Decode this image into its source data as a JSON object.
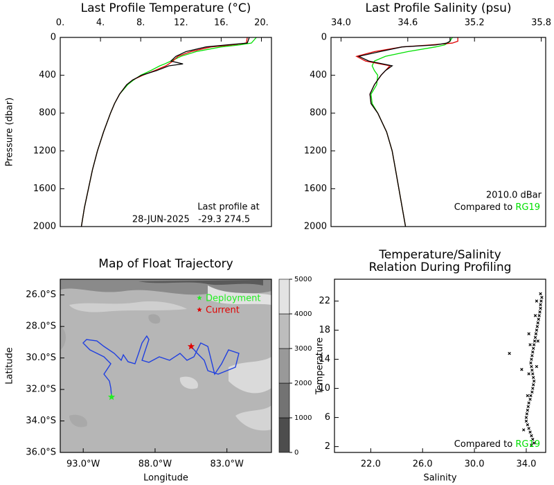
{
  "chart_data": [
    {
      "type": "line",
      "title": "Last Profile Temperature (°C)",
      "y_label": "Pressure (dbar)",
      "x_axis": "top",
      "xlim": [
        0,
        21
      ],
      "xticks": [
        {
          "value": 0,
          "label": "0."
        },
        {
          "value": 4,
          "label": "4."
        },
        {
          "value": 8,
          "label": "8."
        },
        {
          "value": 12,
          "label": "12."
        },
        {
          "value": 16,
          "label": "16."
        },
        {
          "value": 20,
          "label": "20."
        }
      ],
      "ylim": [
        2000,
        0
      ],
      "yticks": [
        0,
        400,
        800,
        1200,
        1600,
        2000
      ],
      "pressure": [
        0,
        60,
        80,
        100,
        150,
        200,
        250,
        280,
        300,
        350,
        400,
        450,
        500,
        600,
        700,
        800,
        1000,
        1200,
        1400,
        1600,
        1800,
        2000
      ],
      "series": [
        {
          "color": "#00e000",
          "values": [
            19.5,
            19.0,
            17.8,
            16.0,
            13.5,
            12.0,
            11.0,
            10.4,
            9.9,
            9.0,
            8.0,
            7.3,
            6.7,
            5.9,
            5.4,
            5.0,
            4.3,
            3.7,
            3.2,
            2.8,
            2.4,
            2.1
          ]
        },
        {
          "color": "#e00000",
          "values": [
            18.6,
            18.5,
            17.0,
            15.0,
            13.0,
            11.7,
            11.2,
            10.8,
            10.5,
            9.4,
            8.2,
            7.2,
            6.6,
            5.9,
            5.4,
            5.0,
            4.3,
            3.7,
            3.2,
            2.8,
            2.4,
            2.1
          ]
        },
        {
          "color": "#000000",
          "values": [
            18.8,
            18.6,
            16.5,
            14.5,
            12.5,
            11.5,
            11.0,
            12.2,
            10.8,
            9.6,
            8.1,
            7.2,
            6.6,
            5.9,
            5.4,
            5.0,
            4.3,
            3.7,
            3.2,
            2.8,
            2.4,
            2.1
          ]
        }
      ],
      "annotations": [
        "Last profile at",
        "28-JUN-2025   -29.3 274.5"
      ]
    },
    {
      "type": "line",
      "title": "Last Profile Salinity (psu)",
      "x_axis": "top",
      "xlim": [
        33.91,
        35.84
      ],
      "xticks": [
        {
          "value": 34,
          "label": "34.0"
        },
        34.6,
        35.2,
        35.8
      ],
      "ylim": [
        2000,
        0
      ],
      "yticks": [
        0,
        400,
        800,
        1200,
        1600,
        2000
      ],
      "pressure": [
        0,
        40,
        60,
        80,
        100,
        150,
        200,
        250,
        300,
        350,
        400,
        500,
        600,
        700,
        800,
        1000,
        1200,
        1400,
        1600,
        1800,
        2000
      ],
      "series": [
        {
          "color": "#00e000",
          "values": [
            35.0,
            34.98,
            34.96,
            34.93,
            34.85,
            34.6,
            34.4,
            34.3,
            34.28,
            34.3,
            34.33,
            34.32,
            34.27,
            34.28,
            34.33,
            34.41,
            34.46,
            34.49,
            34.52,
            34.55,
            34.58
          ]
        },
        {
          "color": "#e00000",
          "values": [
            35.05,
            35.05,
            35.0,
            34.8,
            34.55,
            34.3,
            34.14,
            34.22,
            34.44,
            34.4,
            34.36,
            34.3,
            34.26,
            34.27,
            34.33,
            34.41,
            34.46,
            34.49,
            34.52,
            34.55,
            34.58
          ]
        },
        {
          "color": "#000000",
          "values": [
            34.98,
            34.98,
            34.95,
            34.85,
            34.55,
            34.35,
            34.16,
            34.25,
            34.46,
            34.4,
            34.36,
            34.3,
            34.26,
            34.27,
            34.33,
            34.41,
            34.46,
            34.49,
            34.52,
            34.55,
            34.58
          ]
        }
      ],
      "annotations": [
        "2010.0 dBar",
        "Compared to ",
        "RG19"
      ],
      "annotation_color": "#00e000"
    },
    {
      "type": "map",
      "title": "Map of Float Trajectory",
      "x_label": "Longitude",
      "y_label": "Latitude",
      "xlim": [
        -94.6,
        -79.9
      ],
      "xticks": [
        {
          "value": -93,
          "label": "93.0°W"
        },
        {
          "value": -88,
          "label": "88.0°W"
        },
        {
          "value": -83,
          "label": "83.0°W"
        }
      ],
      "ylim": [
        -36,
        -25
      ],
      "yticks": [
        {
          "value": -26,
          "label": "26.0°S"
        },
        {
          "value": -28,
          "label": "28.0°S"
        },
        {
          "value": -30,
          "label": "30.0°S"
        },
        {
          "value": -32,
          "label": "32.0°S"
        },
        {
          "value": -34,
          "label": "34.0°S"
        },
        {
          "value": -36,
          "label": "36.0°S"
        }
      ],
      "colorbar": {
        "ticks": [
          0,
          1000,
          2000,
          3000,
          4000,
          5000
        ],
        "colors": [
          "#4d4d4d",
          "#737373",
          "#999999",
          "#bdbdbd",
          "#e3e3e3"
        ]
      },
      "track": {
        "color": "#1f3fe0",
        "lon": [
          -91.03,
          -91.08,
          -91.18,
          -91.56,
          -91.08,
          -91.56,
          -92.53,
          -93.01,
          -92.77,
          -92.05,
          -91.56,
          -90.84,
          -90.36,
          -90.21,
          -89.88,
          -89.4,
          -89.15,
          -88.91,
          -88.58,
          -88.43,
          -88.67,
          -88.91,
          -88.43,
          -87.71,
          -86.99,
          -86.26,
          -85.78,
          -85.3,
          -84.82,
          -84.33,
          -83.85,
          -83.37,
          -82.89,
          -82.17,
          -82.41,
          -83.61,
          -84.33,
          -84.58,
          -85.06,
          -85.49
        ],
        "lat": [
          -32.48,
          -31.91,
          -31.47,
          -31.03,
          -30.37,
          -29.93,
          -29.49,
          -29.05,
          -28.83,
          -28.92,
          -29.27,
          -29.71,
          -30.15,
          -29.8,
          -30.24,
          -30.37,
          -29.71,
          -29.05,
          -28.61,
          -28.83,
          -29.49,
          -30.15,
          -30.28,
          -29.93,
          -30.15,
          -29.71,
          -30.15,
          -29.93,
          -29.05,
          -29.27,
          -31.03,
          -30.37,
          -29.49,
          -29.71,
          -30.59,
          -31.03,
          -30.81,
          -30.15,
          -29.71,
          -29.27
        ]
      },
      "markers": [
        {
          "name": "Deployment",
          "color": "#22ee22",
          "lon": -91.03,
          "lat": -32.48
        },
        {
          "name": "Current",
          "color": "#e00000",
          "lon": -85.49,
          "lat": -29.27
        }
      ]
    },
    {
      "type": "scatter",
      "title": [
        "Temperature/Salinity",
        "Relation During Profiling"
      ],
      "x_label": "Salinity",
      "y_label": "Temperature",
      "xlim": [
        19.2,
        35.5
      ],
      "xticks": [
        {
          "value": 22,
          "label": "22.0"
        },
        {
          "value": 26,
          "label": "26.0"
        },
        {
          "value": 30,
          "label": "30.0"
        },
        {
          "value": 34,
          "label": "34.0"
        }
      ],
      "ylim": [
        1.2,
        25
      ],
      "yticks": [
        2,
        6,
        10,
        14,
        18,
        22
      ],
      "color": "#000000",
      "x": [
        34.6,
        34.5,
        34.4,
        34.3,
        34.2,
        34.1,
        34.0,
        34.0,
        34.05,
        34.1,
        34.15,
        34.2,
        34.3,
        34.35,
        34.45,
        34.5,
        34.55,
        34.6,
        34.55,
        34.5,
        34.45,
        34.4,
        34.35,
        34.4,
        34.45,
        34.5,
        34.55,
        34.6,
        34.65,
        34.7,
        34.75,
        34.8,
        34.85,
        34.9,
        34.95,
        35.0,
        35.05,
        35.1,
        35.1,
        35.15,
        35.2,
        35.1,
        34.8,
        34.7,
        34.3,
        34.2,
        34.8,
        34.1,
        33.8,
        32.7,
        33.65,
        34.4,
        34.9,
        34.2
      ],
      "values": [
        2.5,
        3.0,
        3.5,
        4.0,
        4.5,
        5.0,
        5.5,
        6.0,
        6.5,
        7.0,
        7.5,
        8.0,
        8.5,
        9.0,
        9.5,
        10.0,
        10.5,
        11.0,
        11.5,
        12.0,
        12.5,
        13.0,
        13.5,
        14.0,
        14.5,
        15.0,
        15.5,
        16.0,
        16.5,
        17.0,
        17.5,
        18.0,
        18.5,
        19.0,
        19.5,
        20.0,
        20.5,
        21.0,
        21.5,
        22.0,
        22.5,
        23.0,
        22.0,
        20.0,
        16.0,
        12.0,
        13.0,
        9.0,
        4.3,
        14.8,
        12.6,
        2.2,
        16.5,
        17.5
      ],
      "annotations": [
        "Compared to ",
        "RG19"
      ],
      "annotation_color": "#00e000"
    }
  ]
}
